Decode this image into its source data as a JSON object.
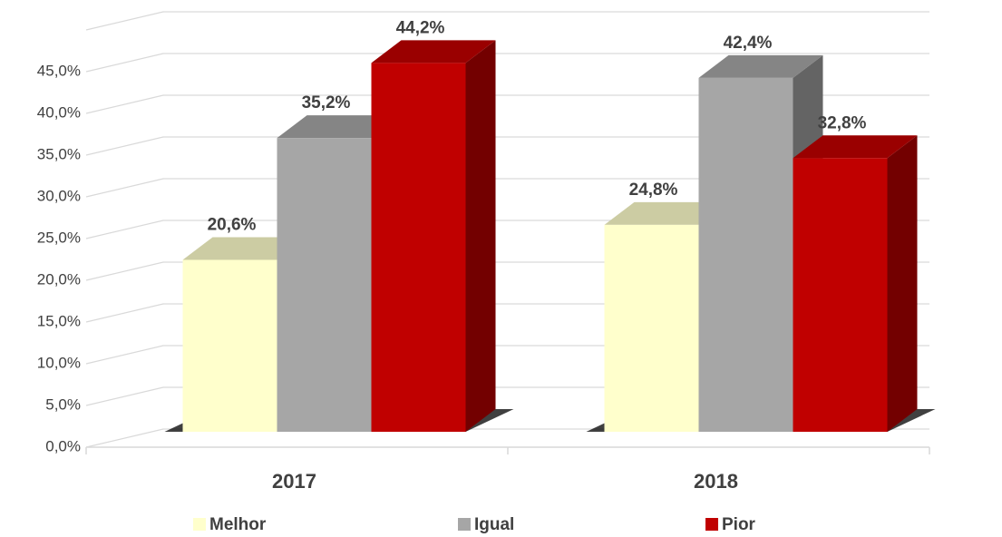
{
  "chart_data": {
    "type": "bar",
    "categories": [
      "2017",
      "2018"
    ],
    "series": [
      {
        "name": "Melhor",
        "color": "#ffffcc",
        "values": [
          20.6,
          24.8
        ],
        "value_labels": [
          "20,6%",
          "24,8%"
        ]
      },
      {
        "name": "Igual",
        "color": "#a6a6a6",
        "values": [
          35.2,
          42.4
        ],
        "value_labels": [
          "35,2%",
          "42,4%"
        ]
      },
      {
        "name": "Pior",
        "color": "#c00000",
        "values": [
          44.2,
          32.8
        ],
        "value_labels": [
          "44,2%",
          "32,8%"
        ]
      }
    ],
    "ylim": [
      0,
      50
    ],
    "yticks": [
      {
        "value": 0,
        "label": "0,0%"
      },
      {
        "value": 5,
        "label": "5,0%"
      },
      {
        "value": 10,
        "label": "10,0%"
      },
      {
        "value": 15,
        "label": "15,0%"
      },
      {
        "value": 20,
        "label": "20,0%"
      },
      {
        "value": 25,
        "label": "25,0%"
      },
      {
        "value": 30,
        "label": "30,0%"
      },
      {
        "value": 35,
        "label": "35,0%"
      },
      {
        "value": 40,
        "label": "40,0%"
      },
      {
        "value": 45,
        "label": "45,0%"
      }
    ],
    "grid": true,
    "legend": "bottom"
  }
}
